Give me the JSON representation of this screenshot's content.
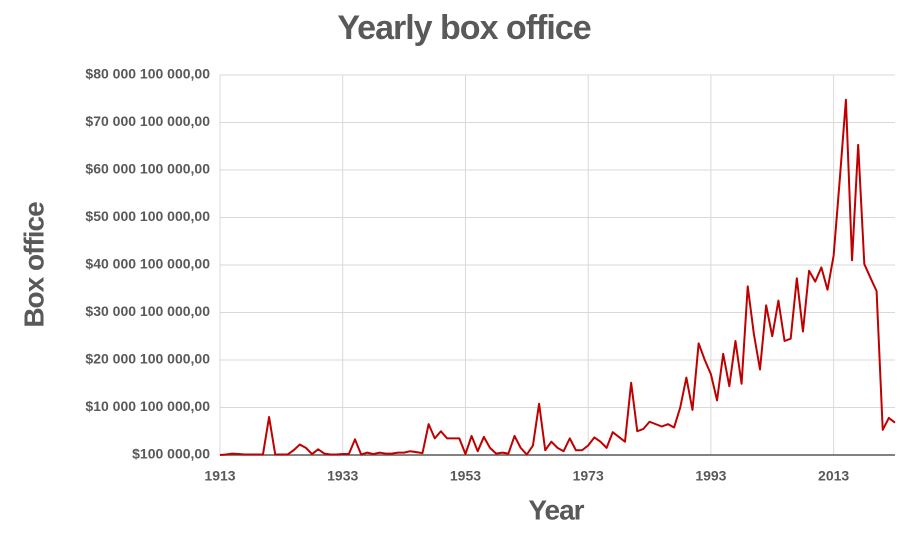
{
  "chart_data": {
    "type": "line",
    "title": "Yearly box office",
    "xlabel": "Year",
    "ylabel": "Box office",
    "color": "#c00000",
    "grid": true,
    "xlim": [
      1913,
      2023
    ],
    "xticks": [
      1913,
      1933,
      1953,
      1973,
      1993,
      2013
    ],
    "ylim": [
      100000,
      80000100000
    ],
    "yticks": [
      {
        "value": 100000,
        "label": "$100 000,00"
      },
      {
        "value": 10000100000,
        "label": "$10 000 100 000,00"
      },
      {
        "value": 20000100000,
        "label": "$20 000 100 000,00"
      },
      {
        "value": 30000100000,
        "label": "$30 000 100 000,00"
      },
      {
        "value": 40000100000,
        "label": "$40 000 100 000,00"
      },
      {
        "value": 50000100000,
        "label": "$50 000 100 000,00"
      },
      {
        "value": 60000100000,
        "label": "$60 000 100 000,00"
      },
      {
        "value": 70000100000,
        "label": "$70 000 100 000,00"
      },
      {
        "value": 80000100000,
        "label": "$80 000 100 000,00"
      }
    ],
    "x": [
      1913,
      1914,
      1915,
      1916,
      1917,
      1918,
      1919,
      1920,
      1921,
      1922,
      1923,
      1924,
      1925,
      1926,
      1927,
      1928,
      1929,
      1930,
      1931,
      1932,
      1933,
      1934,
      1935,
      1936,
      1937,
      1938,
      1939,
      1940,
      1941,
      1942,
      1943,
      1944,
      1945,
      1946,
      1947,
      1948,
      1949,
      1950,
      1951,
      1952,
      1953,
      1954,
      1955,
      1956,
      1957,
      1958,
      1959,
      1960,
      1961,
      1962,
      1963,
      1964,
      1965,
      1966,
      1967,
      1968,
      1969,
      1970,
      1971,
      1972,
      1973,
      1974,
      1975,
      1976,
      1977,
      1978,
      1979,
      1980,
      1981,
      1982,
      1983,
      1984,
      1985,
      1986,
      1987,
      1988,
      1989,
      1990,
      1991,
      1992,
      1993,
      1994,
      1995,
      1996,
      1997,
      1998,
      1999,
      2000,
      2001,
      2002,
      2003,
      2004,
      2005,
      2006,
      2007,
      2008,
      2009,
      2010,
      2011,
      2012,
      2013,
      2014,
      2015,
      2016,
      2017,
      2018,
      2019,
      2020,
      2021,
      2022,
      2023
    ],
    "values": [
      100000.0,
      100000000.0,
      300000000.0,
      200000000.0,
      100000000.0,
      100000000.0,
      100000000.0,
      100000000.0,
      8000000000.0,
      100000000.0,
      100000000.0,
      100000000.0,
      1000000000.0,
      2200000000.0,
      1500000000.0,
      200000000.0,
      1200000000.0,
      300000000.0,
      100000000.0,
      100000000.0,
      200000000.0,
      200000000.0,
      3300000000.0,
      100000000.0,
      500000000.0,
      200000000.0,
      500000000.0,
      300000000.0,
      300000000.0,
      500000000.0,
      500000000.0,
      800000000.0,
      600000000.0,
      400000000.0,
      6500000000.0,
      3500000000.0,
      5000000000.0,
      3500000000.0,
      3500000000.0,
      3500000000.0,
      200000000.0,
      4000000000.0,
      800000000.0,
      3800000000.0,
      1500000000.0,
      300000000.0,
      500000000.0,
      300000000.0,
      4000000000.0,
      1500000000.0,
      100000000.0,
      2000000000.0,
      10800000000.0,
      1000000000.0,
      2800000000.0,
      1500000000.0,
      800000000.0,
      3500000000.0,
      1000000000.0,
      1000000000.0,
      2000000000.0,
      3700000000.0,
      2800000000.0,
      1500000000.0,
      4800000000.0,
      3800000000.0,
      2800000000.0,
      15200000000.0,
      5000000000.0,
      5500000000.0,
      7000000000.0,
      6500000000.0,
      6000000000.0,
      6500000000.0,
      5800000000.0,
      10000000000.0,
      16300000000.0,
      9500000000.0,
      23500000000.0,
      20000000000.0,
      17000000000.0,
      11500000000.0,
      21300000000.0,
      14500000000.0,
      24000000000.0,
      15000000000.0,
      35500000000.0,
      25500000000.0,
      18000000000.0,
      31500000000.0,
      25000000000.0,
      32500000000.0,
      24000000000.0,
      24500000000.0,
      37200000000.0,
      26000000000.0,
      38800000000.0,
      36500000000.0,
      39500000000.0,
      34800000000.0,
      42000000000.0,
      58000000000.0,
      74800000000.0,
      41000000000.0,
      65300000000.0,
      40200000000.0,
      37300000000.0,
      34500000000.0,
      5300000000.0,
      7800000000.0,
      6800000000.0
    ]
  }
}
